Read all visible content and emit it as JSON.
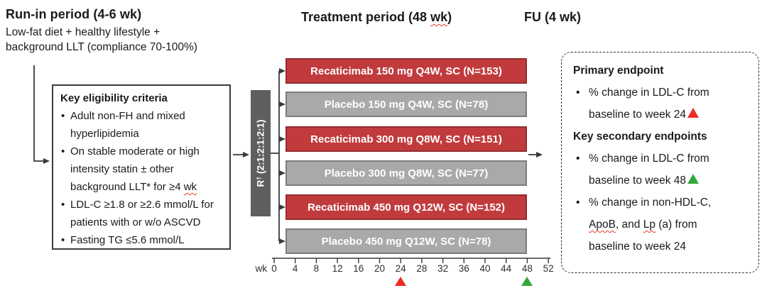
{
  "headers": {
    "runin": {
      "title": "Run-in period (4-6 wk)",
      "subtitle_lines": [
        "Low-fat diet + healthy lifestyle +",
        "background LLT (compliance 70-100%)"
      ]
    },
    "treatment": {
      "title_segments": [
        {
          "t": "Treatment period (48 "
        },
        {
          "t": "wk",
          "wavy": true
        },
        {
          "t": ")"
        }
      ]
    },
    "fu": {
      "title": "FU (4 wk)"
    }
  },
  "eligibility": {
    "title": "Key eligibility criteria",
    "items": [
      {
        "segments": [
          {
            "t": "Adult non-FH and mixed hyperlipidemia"
          }
        ]
      },
      {
        "segments": [
          {
            "t": "On stable moderate or high intensity statin ± other background LLT* for ≥4 "
          },
          {
            "t": "wk",
            "wavy": true
          }
        ]
      },
      {
        "segments": [
          {
            "t": "LDL-C ≥1.8 or ≥2.6 mmol/L for patients with or w/o ASCVD"
          }
        ]
      },
      {
        "segments": [
          {
            "t": "Fasting TG ≤5.6 mmol/L"
          }
        ]
      }
    ]
  },
  "randomization": {
    "label_main": "R",
    "label_sup": "†",
    "label_ratio": " (2:1:2:1:2:1)"
  },
  "arms": [
    {
      "type": "drug",
      "label": "Recaticimab 150 mg Q4W, SC (N=153)"
    },
    {
      "type": "placebo",
      "label": "Placebo 150 mg Q4W, SC (N=78)"
    },
    {
      "type": "drug",
      "label": "Recaticimab 300 mg Q8W, SC (N=151)"
    },
    {
      "type": "placebo",
      "label": "Placebo 300 mg Q8W, SC (N=77)"
    },
    {
      "type": "drug",
      "label": "Recaticimab 450 mg Q12W, SC (N=152)"
    },
    {
      "type": "placebo",
      "label": "Placebo 450 mg Q12W, SC (N=78)"
    }
  ],
  "axis": {
    "unit": "wk",
    "ticks": [
      "0",
      "4",
      "8",
      "12",
      "16",
      "20",
      "24",
      "28",
      "32",
      "36",
      "40",
      "44",
      "48",
      "52"
    ],
    "markers": [
      {
        "tick_index": 6,
        "week": "24",
        "color": "#ee2b24",
        "name": "week-24-assessment-marker"
      },
      {
        "tick_index": 12,
        "week": "48",
        "color": "#33a93c",
        "name": "week-48-assessment-marker"
      }
    ]
  },
  "endpoints": {
    "primary_title": "Primary endpoint",
    "primary_items": [
      {
        "segments": [
          {
            "t": "% change in LDL-C from baseline to week 24"
          },
          {
            "t": "▲",
            "triangle": "#ee2b24"
          }
        ]
      }
    ],
    "secondary_title": "Key secondary endpoints",
    "secondary_items": [
      {
        "segments": [
          {
            "t": "% change in LDL-C from baseline to week 48"
          },
          {
            "t": "▲",
            "triangle": "#33a93c"
          }
        ]
      },
      {
        "segments": [
          {
            "t": "% change in non-HDL-C, "
          },
          {
            "t": "ApoB",
            "wavy": true
          },
          {
            "t": ", and "
          },
          {
            "t": "Lp",
            "wavy": true
          },
          {
            "t": " (a) from baseline to week 24"
          }
        ]
      }
    ]
  },
  "colors": {
    "drug_fill": "#c13b3d",
    "drug_border": "#932c2e",
    "placebo_fill": "#a9a9a9",
    "placebo_border": "#7c7c7c",
    "rand_fill": "#5f5f5f",
    "line": "#3a3a3a",
    "marker_red": "#ee2b24",
    "marker_green": "#33a93c"
  }
}
